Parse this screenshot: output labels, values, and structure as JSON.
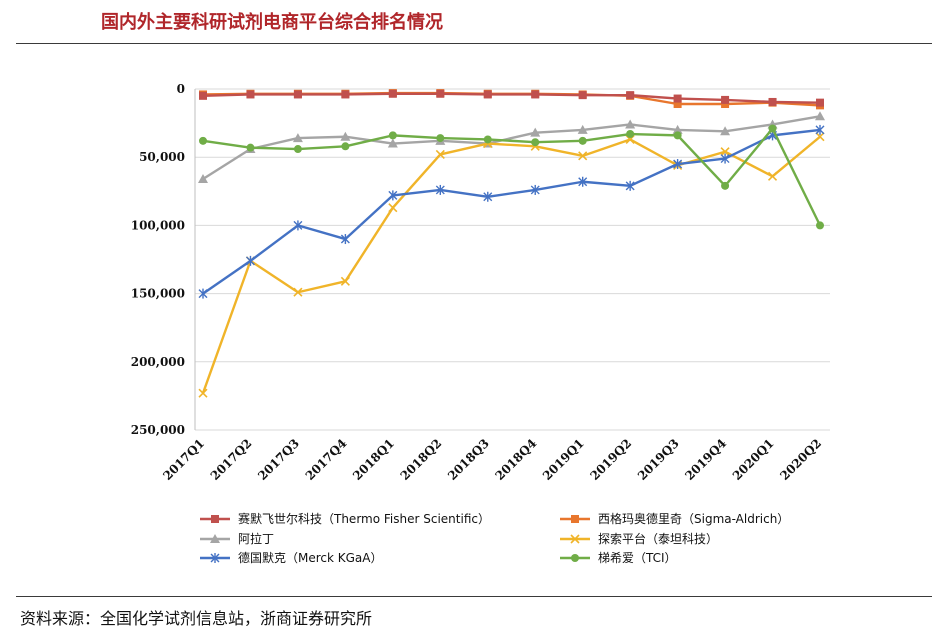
{
  "header": {
    "title": "国内外主要科研试剂电商平台综合排名情况"
  },
  "footer": {
    "source": "资料来源：全国化学试剂信息站，浙商证券研究所"
  },
  "chart_data": {
    "type": "line",
    "title": "",
    "xlabel": "",
    "ylabel": "",
    "y_inverted": true,
    "ylim": [
      0,
      250000
    ],
    "y_ticks": [
      0,
      50000,
      100000,
      150000,
      200000,
      250000
    ],
    "y_tick_labels": [
      "0",
      "50,000",
      "100,000",
      "150,000",
      "200,000",
      "250,000"
    ],
    "grid": "horizontal",
    "legend_placement": "bottom",
    "categories": [
      "2017Q1",
      "2017Q2",
      "2017Q3",
      "2017Q4",
      "2018Q1",
      "2018Q2",
      "2018Q3",
      "2018Q4",
      "2019Q1",
      "2019Q2",
      "2019Q3",
      "2019Q4",
      "2020Q1",
      "2020Q2"
    ],
    "series": [
      {
        "name": "赛默飞世尔科技（Thermo Fisher Scientific）",
        "color": "#c0504d",
        "marker": "square",
        "values": [
          5000,
          4000,
          4000,
          4000,
          3500,
          3500,
          4000,
          4000,
          4500,
          4500,
          7000,
          8000,
          9500,
          10000
        ]
      },
      {
        "name": "西格玛奥德里奇（Sigma-Aldrich）",
        "color": "#e8762d",
        "marker": "square",
        "values": [
          4000,
          3500,
          3500,
          3500,
          3000,
          3000,
          3500,
          3500,
          4000,
          5000,
          11000,
          11000,
          10000,
          12000
        ]
      },
      {
        "name": "阿拉丁",
        "color": "#a5a5a5",
        "marker": "triangle",
        "values": [
          66000,
          44000,
          36000,
          35000,
          40000,
          38000,
          40000,
          32000,
          30000,
          26000,
          30000,
          31000,
          26000,
          20000
        ]
      },
      {
        "name": "探索平台（泰坦科技）",
        "color": "#f0b429",
        "marker": "x",
        "values": [
          223000,
          126000,
          149000,
          141000,
          87000,
          48000,
          40000,
          42000,
          49000,
          37000,
          56000,
          46000,
          64000,
          35000
        ]
      },
      {
        "name": "德国默克（Merck KGaA）",
        "color": "#4472c4",
        "marker": "star",
        "values": [
          150000,
          126000,
          100000,
          110000,
          78000,
          74000,
          79000,
          74000,
          68000,
          71000,
          55000,
          51000,
          34000,
          30000
        ]
      },
      {
        "name": "梯希爱（TCI）",
        "color": "#70ad47",
        "marker": "circle",
        "values": [
          38000,
          43000,
          44000,
          42000,
          34000,
          36000,
          37000,
          39000,
          38000,
          33000,
          34000,
          71000,
          29000,
          100000
        ]
      }
    ]
  }
}
